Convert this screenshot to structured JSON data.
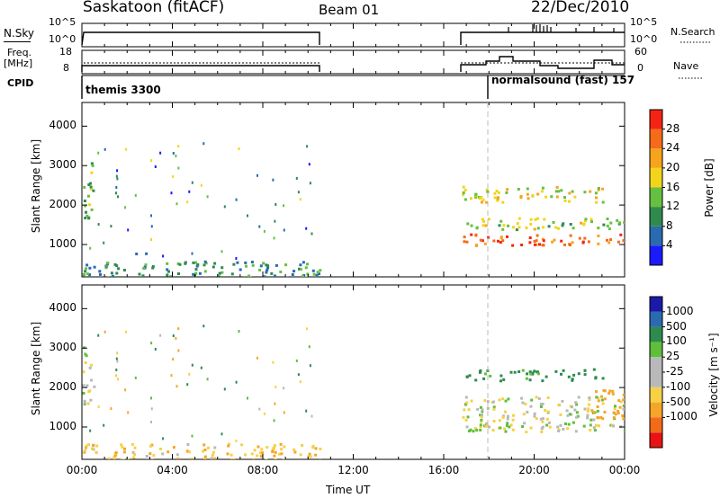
{
  "header": {
    "station": "Saskatoon (fitACF)",
    "beam": "Beam 01",
    "date": "22/Dec/2010"
  },
  "strip_labels": {
    "nsky": "N.Sky",
    "nsky_ticks": [
      "10^5",
      "10^0"
    ],
    "nsearch": "N.Search",
    "nsearch_ticks": [
      "10^5",
      "10^0"
    ],
    "freq": "Freq.",
    "freq_unit": "[MHz]",
    "freq_ticks": [
      "18",
      "8"
    ],
    "nave": "Nave",
    "nave_ticks": [
      "60",
      "0"
    ],
    "cpid": "CPID"
  },
  "cpid_modes": [
    {
      "label": "themis 3300",
      "start_hour": 0
    },
    {
      "label": "normalsound (fast) 157",
      "start_hour": 18
    }
  ],
  "colors": {
    "power_scale": [
      "#1a1aff",
      "#2a6ab0",
      "#2f8a4f",
      "#66c040",
      "#f2d51b",
      "#f7a31d",
      "#f56b1a",
      "#f52314"
    ],
    "velocity_scale": [
      "#e81414",
      "#f26a1a",
      "#f5a529",
      "#f7d046",
      "#b9b9b9",
      "#b9b9b9",
      "#5fbf3b",
      "#2f8a4f",
      "#2a6ab0",
      "#1a1aa8"
    ]
  },
  "chart_data": [
    {
      "type": "heatmap",
      "name": "Power",
      "xlabel": "",
      "ylabel": "Slant Range [km]",
      "xlim": [
        0,
        24
      ],
      "ylim": [
        180,
        4600
      ],
      "yticks": [
        "1000",
        "2000",
        "3000",
        "4000"
      ],
      "colorbar_label": "Power [dB]",
      "colorbar_ticks": [
        "4",
        "8",
        "12",
        "16",
        "20",
        "24",
        "28"
      ],
      "colorbar_range": [
        0,
        32
      ],
      "data_gaps_hours": [
        [
          10.6,
          16.8
        ]
      ],
      "echo_regions": [
        {
          "t0": 16.8,
          "t1": 24,
          "r0": 1000,
          "r1": 1300,
          "power_db": 27
        },
        {
          "t0": 16.8,
          "t1": 24,
          "r0": 1400,
          "r1": 1700,
          "power_db": 16
        },
        {
          "t0": 16.8,
          "t1": 23,
          "r0": 2100,
          "r1": 2500,
          "power_db": 18
        },
        {
          "t0": 0,
          "t1": 0.5,
          "r0": 1600,
          "r1": 3100,
          "power_db": 14
        },
        {
          "t0": 2,
          "t1": 3,
          "r0": 750,
          "r1": 820,
          "power_db": 4
        },
        {
          "t0": 0,
          "t1": 10.6,
          "r0": 180,
          "r1": 600,
          "power_db": 10
        }
      ]
    },
    {
      "type": "heatmap",
      "name": "Velocity",
      "xlabel": "Time UT",
      "ylabel": "Slant Range [km]",
      "xlim": [
        0,
        24
      ],
      "ylim": [
        180,
        4600
      ],
      "xticks": [
        "00:00",
        "04:00",
        "08:00",
        "12:00",
        "16:00",
        "20:00",
        "00:00"
      ],
      "yticks": [
        "1000",
        "2000",
        "3000",
        "4000"
      ],
      "colorbar_label": "Velocity [m s⁻¹]",
      "colorbar_ticks": [
        "1000",
        "500",
        "100",
        "25",
        "-25",
        "-100",
        "-500",
        "-1000"
      ],
      "data_gaps_hours": [
        [
          10.6,
          16.8
        ]
      ],
      "echo_regions": [
        {
          "t0": 16.8,
          "t1": 24,
          "r0": 900,
          "r1": 1800,
          "velocity": 0
        },
        {
          "t0": 16.8,
          "t1": 23,
          "r0": 2200,
          "r1": 2500,
          "velocity": 150
        },
        {
          "t0": 22.5,
          "t1": 24,
          "r0": 1200,
          "r1": 2000,
          "velocity": -300
        },
        {
          "t0": 0,
          "t1": 0.5,
          "r0": 1600,
          "r1": 3100,
          "velocity": 0
        },
        {
          "t0": 0,
          "t1": 10.6,
          "r0": 180,
          "r1": 600,
          "velocity": -80
        }
      ]
    }
  ]
}
